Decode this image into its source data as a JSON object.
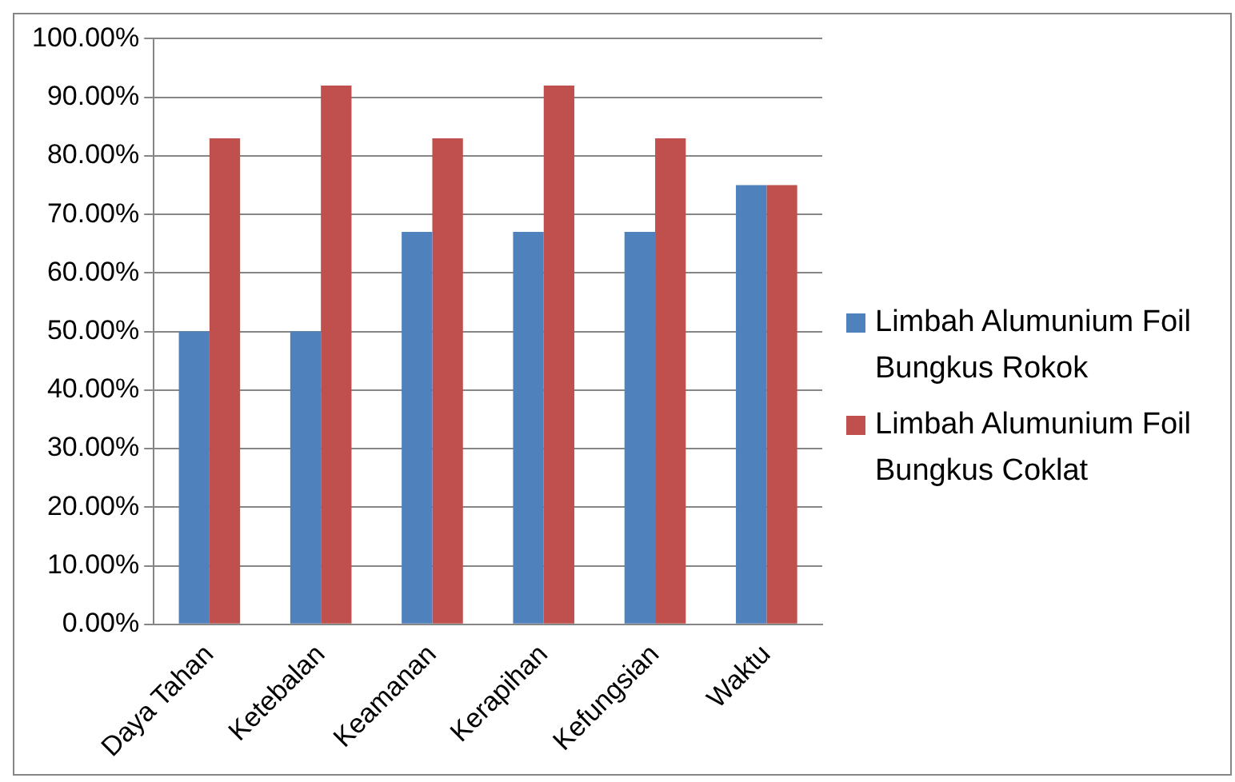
{
  "chart_data": {
    "type": "bar",
    "categories": [
      "Daya Tahan",
      "Ketebalan",
      "Keamanan",
      "Kerapihan",
      "Kefungsian",
      "Waktu"
    ],
    "series": [
      {
        "name": "Limbah Alumunium Foil Bungkus Rokok",
        "color": "#4f81bd",
        "values": [
          50,
          50,
          67,
          67,
          67,
          75
        ]
      },
      {
        "name": "Limbah Alumunium Foil Bungkus Coklat",
        "color": "#c0504d",
        "values": [
          83,
          92,
          83,
          92,
          83,
          75
        ]
      }
    ],
    "ylim": [
      0,
      100
    ],
    "yticks": [
      {
        "value": 0,
        "label": "0.00%"
      },
      {
        "value": 10,
        "label": "10.00%"
      },
      {
        "value": 20,
        "label": "20.00%"
      },
      {
        "value": 30,
        "label": "30.00%"
      },
      {
        "value": 40,
        "label": "40.00%"
      },
      {
        "value": 50,
        "label": "50.00%"
      },
      {
        "value": 60,
        "label": "60.00%"
      },
      {
        "value": 70,
        "label": "70.00%"
      },
      {
        "value": 80,
        "label": "80.00%"
      },
      {
        "value": 90,
        "label": "90.00%"
      },
      {
        "value": 100,
        "label": "100.00%"
      }
    ],
    "grid": "y",
    "legend": "right"
  }
}
